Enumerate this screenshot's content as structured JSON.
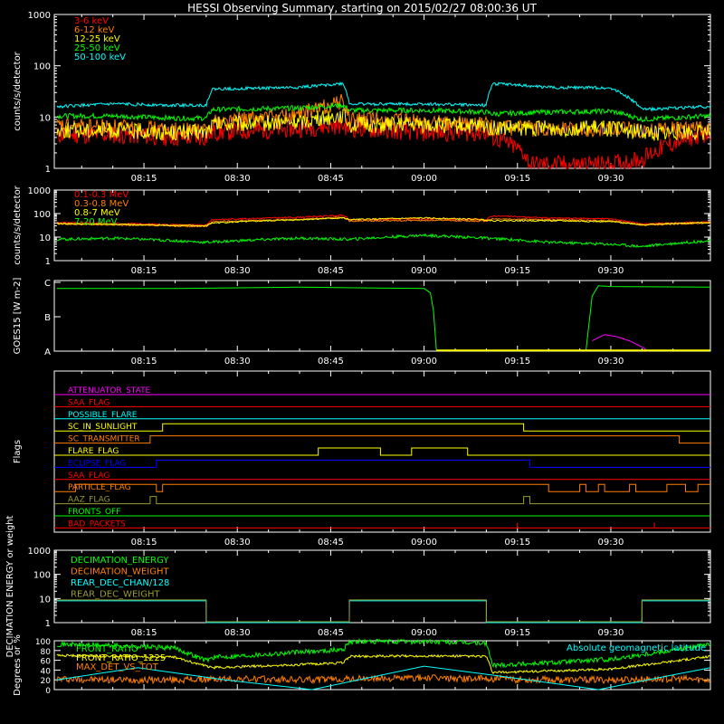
{
  "title": "HESSI Observing Summary, starting on 2015/02/27 08:00:36 UT",
  "colors": {
    "background": "#000000",
    "frame": "#ffffff",
    "red": "#ff0000",
    "orange": "#ff7f00",
    "yellow": "#ffff00",
    "green": "#00ff00",
    "cyan": "#00ffff",
    "magenta": "#ff00ff",
    "blue": "#0000ff",
    "olive": "#9a9a30"
  },
  "time_axis": {
    "ticks": [
      "08:15",
      "08:30",
      "08:45",
      "09:00",
      "09:15",
      "09:30"
    ],
    "tick_minutes": [
      15,
      30,
      45,
      60,
      75,
      90
    ],
    "range_minutes": [
      0.6,
      106
    ]
  },
  "chart_data": [
    {
      "type": "line",
      "ylabel": "counts/s/detector",
      "yscale": "log",
      "ylim": [
        1,
        1000
      ],
      "y_tick_labels": [
        "1",
        "10",
        "100",
        "1000"
      ],
      "series": [
        {
          "name": "3-6 keV",
          "color": "red",
          "x": [
            1,
            10,
            20,
            25,
            26,
            40,
            47,
            48,
            60,
            70,
            71,
            76,
            77,
            90,
            95,
            106
          ],
          "y": [
            4.5,
            4.5,
            4.0,
            4.0,
            5.0,
            6.0,
            7.0,
            6.0,
            5.0,
            5.0,
            4.0,
            2.0,
            1.2,
            1.2,
            1.5,
            5.0
          ]
        },
        {
          "name": "6-12 keV",
          "color": "orange",
          "x": [
            1,
            10,
            20,
            25,
            26,
            40,
            47,
            48,
            60,
            70,
            71,
            80,
            90,
            95,
            106
          ],
          "y": [
            6.5,
            6.5,
            5.5,
            5.5,
            8.0,
            11.0,
            20.0,
            9.0,
            8.0,
            7.0,
            6.0,
            6.0,
            6.0,
            5.5,
            6.0
          ]
        },
        {
          "name": "12-25 keV",
          "color": "yellow",
          "x": [
            1,
            10,
            20,
            25,
            26,
            40,
            47,
            48,
            60,
            70,
            71,
            80,
            90,
            95,
            106
          ],
          "y": [
            5.5,
            5.5,
            5.0,
            5.0,
            7.0,
            8.0,
            11.0,
            7.0,
            7.0,
            6.5,
            6.0,
            6.0,
            6.0,
            5.0,
            5.0
          ]
        },
        {
          "name": "25-50 keV",
          "color": "green",
          "x": [
            1,
            10,
            20,
            25,
            26,
            40,
            47,
            48,
            60,
            70,
            71,
            80,
            90,
            95,
            106
          ],
          "y": [
            10.5,
            10.5,
            9.5,
            9.5,
            14.0,
            15.0,
            17.0,
            13.5,
            13.5,
            12.5,
            11.5,
            12.5,
            13.0,
            9.0,
            10.5
          ]
        },
        {
          "name": "50-100 keV",
          "color": "cyan",
          "x": [
            1,
            10,
            20,
            25,
            26,
            40,
            47,
            48,
            60,
            70,
            71,
            80,
            90,
            95,
            106
          ],
          "y": [
            16.0,
            18.0,
            17.0,
            17.0,
            35.0,
            38.0,
            45.0,
            18.0,
            18.0,
            17.0,
            45.0,
            38.0,
            37.0,
            14.0,
            16.0
          ]
        }
      ]
    },
    {
      "type": "line",
      "ylabel": "counts/s/detector",
      "yscale": "log",
      "ylim": [
        1,
        1000
      ],
      "y_tick_labels": [
        "1",
        "10",
        "100",
        "1000"
      ],
      "series": [
        {
          "name": "0.1-0.3 MeV",
          "color": "red",
          "x": [
            1,
            25,
            26,
            40,
            47,
            48,
            60,
            70,
            71,
            80,
            90,
            95,
            106
          ],
          "y": [
            42,
            32,
            55,
            70,
            85,
            55,
            60,
            55,
            80,
            65,
            60,
            36,
            45
          ]
        },
        {
          "name": "0.3-0.8 MeV",
          "color": "orange",
          "x": [
            1,
            25,
            26,
            40,
            47,
            48,
            60,
            70,
            71,
            80,
            90,
            95,
            106
          ],
          "y": [
            36,
            28,
            45,
            58,
            70,
            48,
            52,
            48,
            60,
            55,
            50,
            32,
            40
          ]
        },
        {
          "name": "0.8-7 MeV",
          "color": "yellow",
          "x": [
            1,
            25,
            26,
            40,
            47,
            48,
            60,
            70,
            71,
            80,
            90,
            95,
            106
          ],
          "y": [
            38,
            30,
            40,
            55,
            65,
            55,
            65,
            55,
            50,
            50,
            45,
            34,
            42
          ]
        },
        {
          "name": "7-20 MeV",
          "color": "green",
          "x": [
            1,
            10,
            25,
            40,
            48,
            60,
            70,
            80,
            90,
            95,
            106
          ],
          "y": [
            8,
            9,
            6,
            9,
            8,
            12,
            9,
            6,
            5,
            4,
            7
          ]
        }
      ]
    },
    {
      "type": "line",
      "ylabel": "GOES15 [W m-2]",
      "y_tick_labels": [
        "A",
        "B",
        "C"
      ],
      "ylim": [
        0,
        2
      ],
      "series": [
        {
          "color": "green",
          "x": [
            1,
            20,
            40,
            60,
            61,
            61.5,
            62
          ],
          "y": [
            1.82,
            1.82,
            1.86,
            1.82,
            1.7,
            1.2,
            0
          ]
        },
        {
          "color": "green",
          "x": [
            86,
            87,
            88,
            90,
            106
          ],
          "y": [
            0,
            1.6,
            1.9,
            1.88,
            1.86
          ]
        },
        {
          "color": "magenta",
          "x": [
            87,
            89,
            91,
            93,
            95,
            96
          ],
          "y": [
            0.3,
            0.48,
            0.42,
            0.3,
            0.12,
            0
          ]
        },
        {
          "color": "yellow",
          "x": [
            62,
            106
          ],
          "y": [
            0.02,
            0.02
          ]
        }
      ]
    },
    {
      "type": "line",
      "ylabel": "Flags",
      "series": [
        {
          "name": "ATTENUATOR_STATE",
          "color": "magenta",
          "steps": [
            [
              0,
              0
            ]
          ]
        },
        {
          "name": "SAA_FLAG",
          "color": "red",
          "steps": [
            [
              0,
              0
            ]
          ]
        },
        {
          "name": "POSSIBLE_FLARE",
          "color": "cyan",
          "steps": [
            [
              0,
              0
            ]
          ]
        },
        {
          "name": "SC_IN_SUNLIGHT",
          "color": "yellow",
          "steps": [
            [
              0,
              0
            ],
            [
              18,
              1
            ],
            [
              76,
              0
            ]
          ]
        },
        {
          "name": "SC_TRANSMITTER",
          "color": "orange",
          "steps": [
            [
              0,
              0
            ],
            [
              16,
              1
            ],
            [
              101,
              0
            ]
          ]
        },
        {
          "name": "FLARE_FLAG",
          "color": "yellow",
          "steps": [
            [
              0,
              0
            ],
            [
              43,
              1
            ],
            [
              53,
              0
            ],
            [
              58,
              1
            ],
            [
              67,
              0
            ]
          ]
        },
        {
          "name": "ECLIPSE_FLAG",
          "color": "blue",
          "steps": [
            [
              0,
              0
            ],
            [
              17,
              1
            ],
            [
              77,
              0
            ]
          ]
        },
        {
          "name": "SAA_FLAG",
          "color": "red",
          "steps": [
            [
              0,
              0
            ]
          ]
        },
        {
          "name": "PARTICLE_FLAG",
          "color": "orange",
          "steps": [
            [
              0,
              0
            ],
            [
              4,
              1
            ],
            [
              17,
              0
            ],
            [
              18,
              1
            ],
            [
              80,
              0
            ],
            [
              85,
              1
            ],
            [
              86,
              0
            ],
            [
              88,
              1
            ],
            [
              89,
              0
            ],
            [
              93,
              1
            ],
            [
              94,
              0
            ],
            [
              99,
              1
            ],
            [
              102,
              0
            ],
            [
              104,
              1
            ]
          ]
        },
        {
          "name": "AAZ_FLAG",
          "color": "olive",
          "steps": [
            [
              0,
              0
            ],
            [
              16,
              1
            ],
            [
              17,
              0
            ],
            [
              76,
              1
            ],
            [
              77,
              0
            ]
          ]
        },
        {
          "name": "FRONTS_OFF",
          "color": "green",
          "steps": [
            [
              0,
              0
            ]
          ]
        },
        {
          "name": "BAD_PACKETS",
          "color": "red",
          "spikes": [
            75,
            97
          ]
        }
      ]
    },
    {
      "type": "line",
      "ylabel": "DECIMATION ENERGY or weight",
      "yscale": "log",
      "ylim": [
        1,
        1000
      ],
      "y_tick_labels": [
        "1",
        "10",
        "100",
        "1000"
      ],
      "series": [
        {
          "name": "DECIMATION_ENERGY",
          "color": "green",
          "x": [],
          "y": []
        },
        {
          "name": "DECIMATION_WEIGHT",
          "color": "orange",
          "x": [],
          "y": []
        },
        {
          "name": "REAR_DEC_CHAN/128",
          "color": "cyan",
          "x": [
            1,
            25,
            25.01,
            48,
            48.01,
            70,
            70.01,
            95,
            95.01,
            106
          ],
          "y": [
            8,
            8,
            1,
            1,
            8,
            8,
            1,
            1,
            8,
            8
          ]
        },
        {
          "name": "REAR_DEC_WEIGHT",
          "color": "olive",
          "x": [
            1,
            25,
            25.01,
            48,
            48.01,
            70,
            70.01,
            95,
            95.01,
            106
          ],
          "y": [
            8,
            8,
            1,
            1,
            8,
            8,
            1,
            1,
            8,
            8
          ]
        }
      ]
    },
    {
      "type": "line",
      "ylabel": "Degrees or %",
      "ylim": [
        0,
        100
      ],
      "y_tick_labels": [
        "0",
        "20",
        "40",
        "60",
        "80",
        "100"
      ],
      "annotation": "Absolute geomagnetic latitude",
      "series": [
        {
          "name": "FRONT_RATIO",
          "color": "green",
          "x": [
            1,
            10,
            20,
            25,
            26,
            38,
            47,
            48,
            60,
            70,
            71,
            80,
            90,
            95,
            106
          ],
          "y": [
            93,
            90,
            85,
            60,
            66,
            75,
            82,
            98,
            98,
            95,
            50,
            55,
            62,
            72,
            92
          ]
        },
        {
          "name": "FRONT_RATIO_1225",
          "color": "yellow",
          "x": [
            1,
            10,
            20,
            25,
            26,
            38,
            47,
            48,
            60,
            70,
            71,
            80,
            90,
            95,
            106
          ],
          "y": [
            70,
            68,
            66,
            48,
            45,
            50,
            55,
            68,
            69,
            68,
            35,
            38,
            42,
            50,
            68
          ]
        },
        {
          "name": "MAX_DET_VS_TOT",
          "color": "orange",
          "x": [
            1,
            10,
            20,
            30,
            40,
            50,
            60,
            70,
            80,
            90,
            100,
            106
          ],
          "y": [
            22,
            20,
            20,
            22,
            20,
            22,
            24,
            22,
            20,
            20,
            22,
            20
          ]
        },
        {
          "name": "Absolute geomagnetic latitude",
          "color": "cyan",
          "x": [
            1,
            14,
            28,
            42,
            60,
            72,
            88,
            100,
            106
          ],
          "y": [
            20,
            45,
            20,
            0,
            48,
            28,
            0,
            30,
            45
          ]
        }
      ]
    }
  ]
}
